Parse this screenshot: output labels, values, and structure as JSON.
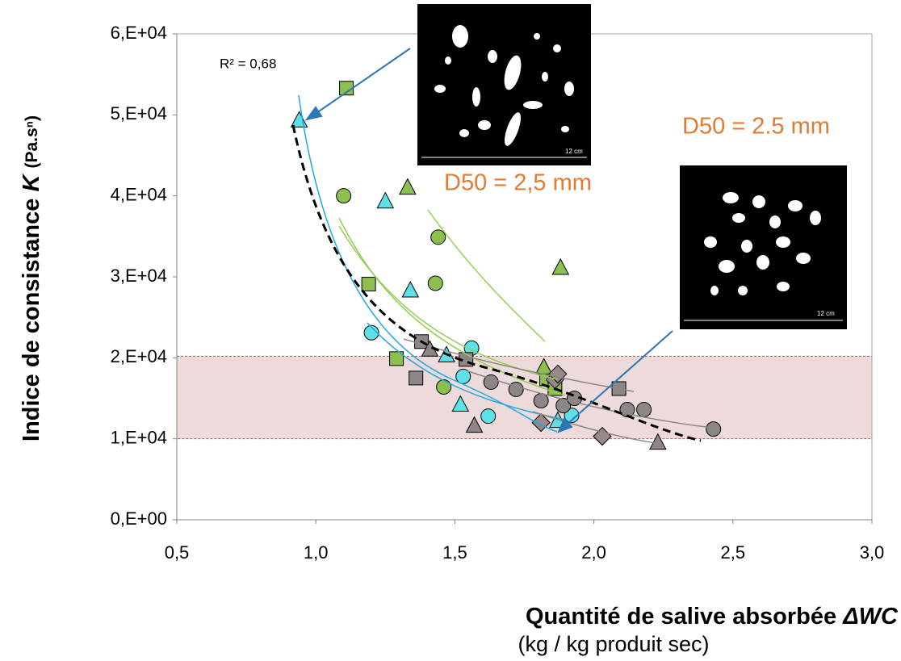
{
  "chart_data": {
    "type": "scatter",
    "y_label": {
      "text": "Indice de consistance",
      "variable": "K",
      "unit": "(Pa.sⁿ)"
    },
    "x_label": {
      "text": "Quantité de salive absorbée",
      "variable": "ΔWC",
      "unit": "(kg / kg produit sec)"
    },
    "xlim": [
      0.5,
      3.0
    ],
    "xticks": [
      {
        "value": 0.5,
        "label": "0,5"
      },
      {
        "value": 1.0,
        "label": "1,0"
      },
      {
        "value": 1.5,
        "label": "1,5"
      },
      {
        "value": 2.0,
        "label": "2,0"
      },
      {
        "value": 2.5,
        "label": "2,5"
      },
      {
        "value": 3.0,
        "label": "3,0"
      }
    ],
    "ylim": [
      0,
      60000
    ],
    "yticks": [
      {
        "value": 0,
        "label": "0,E+00"
      },
      {
        "value": 10000,
        "label": "1,E+04"
      },
      {
        "value": 20000,
        "label": "2,E+04"
      },
      {
        "value": 30000,
        "label": "3,E+04"
      },
      {
        "value": 40000,
        "label": "4,E+04"
      },
      {
        "value": 50000,
        "label": "5,E+04"
      },
      {
        "value": 60000,
        "label": "6,E+04"
      }
    ],
    "grid": false,
    "band": [
      10000,
      20200
    ],
    "annotations": {
      "r2": "R² = 0,68",
      "d50_a": "D50 = 2,5 mm",
      "d50_b": "D50 = 2.5 mm",
      "scale_a": "12 cm",
      "scale_b": "12 cm"
    },
    "series": [
      {
        "marker": "square",
        "color": "#8cbf4e",
        "x": [
          1.11,
          1.19,
          1.29,
          1.83,
          1.86
        ],
        "values": [
          53300,
          29100,
          19900,
          17400,
          16200
        ]
      },
      {
        "marker": "circle",
        "color": "#8cbf4e",
        "x": [
          1.1,
          1.44,
          1.43,
          1.46
        ],
        "values": [
          40000,
          34900,
          29200,
          16400
        ]
      },
      {
        "marker": "triangle",
        "color": "#8cbf4e",
        "x": [
          1.33,
          1.88,
          1.82
        ],
        "values": [
          41000,
          31100,
          18800
        ]
      },
      {
        "marker": "triangle",
        "color": "#5ee0e6",
        "x": [
          0.94,
          1.25,
          1.34,
          1.47,
          1.52,
          1.87
        ],
        "values": [
          49300,
          39300,
          28300,
          20300,
          14200,
          12200
        ]
      },
      {
        "marker": "circle",
        "color": "#5ee0e6",
        "x": [
          1.2,
          1.56,
          1.53,
          1.62,
          1.92
        ],
        "values": [
          23100,
          21200,
          17700,
          12800,
          12900
        ]
      },
      {
        "marker": "square",
        "color": "#8e8686",
        "x": [
          1.38,
          1.36,
          1.54,
          2.09
        ],
        "values": [
          22000,
          17500,
          19800,
          16200
        ]
      },
      {
        "marker": "circle",
        "color": "#8e8686",
        "x": [
          1.63,
          1.72,
          1.81,
          1.89,
          1.93,
          2.12,
          2.18,
          2.43
        ],
        "values": [
          17000,
          16100,
          14700,
          14100,
          15000,
          13600,
          13600,
          11200
        ]
      },
      {
        "marker": "triangle",
        "color": "#8e8686",
        "x": [
          1.41,
          1.57,
          2.23
        ],
        "values": [
          21000,
          11600,
          9500
        ]
      },
      {
        "marker": "diamond",
        "color": "#9a8888",
        "x": [
          1.81,
          1.86,
          2.03,
          1.87
        ],
        "values": [
          12000,
          17300,
          10300,
          18000
        ]
      }
    ]
  }
}
